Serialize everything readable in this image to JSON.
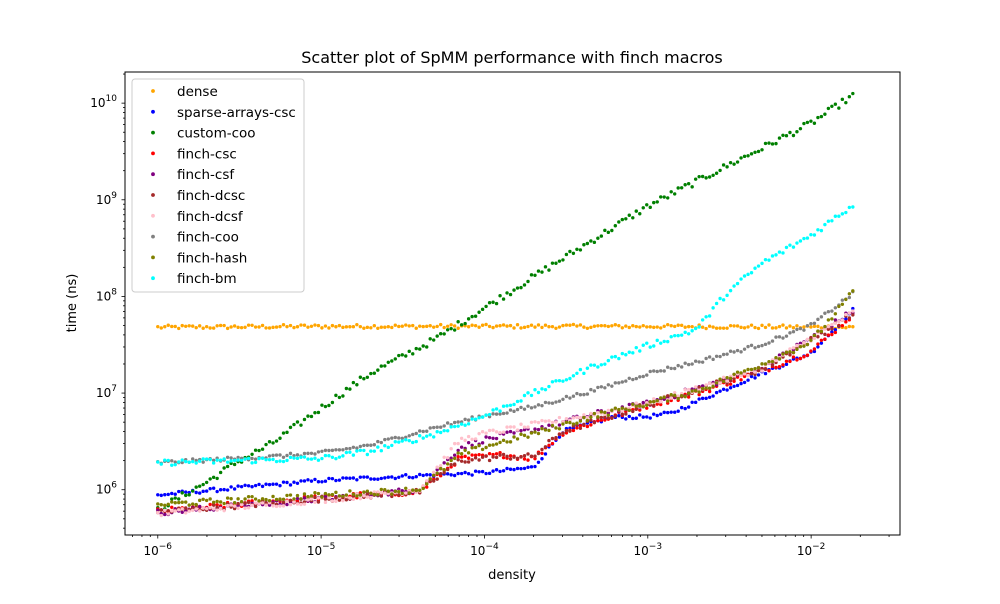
{
  "chart_data": {
    "type": "scatter",
    "title": "Scatter plot of SpMM performance with finch macros",
    "xlabel": "density",
    "ylabel": "time (ns)",
    "xscale": "log",
    "yscale": "log",
    "xlim": [
      6.3e-07,
      0.035
    ],
    "ylim": [
      340000,
      21000000000
    ],
    "x_ticks": [
      {
        "value": 1e-06,
        "base": "10",
        "exp": "−6"
      },
      {
        "value": 1e-05,
        "base": "10",
        "exp": "−5"
      },
      {
        "value": 0.0001,
        "base": "10",
        "exp": "−4"
      },
      {
        "value": 0.001,
        "base": "10",
        "exp": "−3"
      },
      {
        "value": 0.01,
        "base": "10",
        "exp": "−2"
      }
    ],
    "y_ticks": [
      {
        "value": 1000000.0,
        "base": "10",
        "exp": "6"
      },
      {
        "value": 10000000.0,
        "base": "10",
        "exp": "7"
      },
      {
        "value": 100000000.0,
        "base": "10",
        "exp": "8"
      },
      {
        "value": 1000000000.0,
        "base": "10",
        "exp": "9"
      },
      {
        "value": 10000000000.0,
        "base": "10",
        "exp": "10"
      }
    ],
    "grid": false,
    "legend_position": "upper-left",
    "x_range": {
      "start": 1e-06,
      "end": 0.018,
      "points_per_series": 200
    },
    "series": [
      {
        "name": "dense",
        "color": "#ffa500",
        "key": [
          [
            1e-06,
            48000000.0
          ],
          [
            1e-05,
            49000000.0
          ],
          [
            0.0001,
            49000000.0
          ],
          [
            0.001,
            49000000.0
          ],
          [
            0.018,
            48000000.0
          ]
        ],
        "noise": 0.02
      },
      {
        "name": "sparse-arrays-csc",
        "color": "#0000ff",
        "key": [
          [
            1e-06,
            880000.0
          ],
          [
            1e-05,
            1250000.0
          ],
          [
            4e-05,
            1400000.0
          ],
          [
            0.0001,
            1500000.0
          ],
          [
            0.0002,
            1700000.0
          ],
          [
            0.0003,
            4000000.0
          ],
          [
            0.0006,
            5600000.0
          ],
          [
            0.001,
            5700000.0
          ],
          [
            0.0014,
            6200000.0
          ],
          [
            0.002,
            8200000.0
          ],
          [
            0.005,
            16000000.0
          ],
          [
            0.01,
            26000000.0
          ],
          [
            0.018,
            72000000.0
          ]
        ],
        "noise": 0.02
      },
      {
        "name": "custom-coo",
        "color": "#008000",
        "key": [
          [
            1e-06,
            620000.0
          ],
          [
            2e-06,
            1200000.0
          ],
          [
            3e-06,
            1900000.0
          ],
          [
            5e-06,
            3000000.0
          ],
          [
            1e-05,
            7000000.0
          ],
          [
            2e-05,
            16000000.0
          ],
          [
            5e-05,
            36000000.0
          ],
          [
            0.0001,
            76000000.0
          ],
          [
            0.0002,
            160000000.0
          ],
          [
            0.001,
            860000000.0
          ],
          [
            0.01,
            6200000000.0
          ],
          [
            0.018,
            12000000000.0
          ]
        ],
        "noise": 0.035
      },
      {
        "name": "finch-csc",
        "color": "#ff0000",
        "key": [
          [
            1e-06,
            600000.0
          ],
          [
            1e-05,
            830000.0
          ],
          [
            4e-05,
            950000.0
          ],
          [
            7e-05,
            2100000.0
          ],
          [
            0.00013,
            2300000.0
          ],
          [
            0.0002,
            2100000.0
          ],
          [
            0.0003,
            3900000.0
          ],
          [
            0.001,
            7500000.0
          ],
          [
            0.002,
            10000000.0
          ],
          [
            0.005,
            17000000.0
          ],
          [
            0.01,
            27000000.0
          ],
          [
            0.018,
            65000000.0
          ]
        ],
        "noise": 0.03
      },
      {
        "name": "finch-csf",
        "color": "#800080",
        "key": [
          [
            1e-06,
            580000.0
          ],
          [
            1e-05,
            800000.0
          ],
          [
            4e-05,
            1000000.0
          ],
          [
            7e-05,
            2700000.0
          ],
          [
            0.0001,
            3300000.0
          ],
          [
            0.0002,
            4200000.0
          ],
          [
            0.0005,
            6200000.0
          ],
          [
            0.001,
            7800000.0
          ],
          [
            0.005,
            18000000.0
          ],
          [
            0.018,
            70000000.0
          ]
        ],
        "noise": 0.03
      },
      {
        "name": "finch-dcsc",
        "color": "#a52a2a",
        "key": [
          [
            1e-06,
            590000.0
          ],
          [
            1e-05,
            800000.0
          ],
          [
            4e-05,
            950000.0
          ],
          [
            7e-05,
            2000000.0
          ],
          [
            0.00013,
            2200000.0
          ],
          [
            0.0002,
            2200000.0
          ],
          [
            0.0003,
            4000000.0
          ],
          [
            0.001,
            7600000.0
          ],
          [
            0.005,
            17500000.0
          ],
          [
            0.018,
            65000000.0
          ]
        ],
        "noise": 0.03
      },
      {
        "name": "finch-dcsf",
        "color": "#ffc0cb",
        "key": [
          [
            1e-06,
            570000.0
          ],
          [
            1e-05,
            780000.0
          ],
          [
            4e-05,
            1000000.0
          ],
          [
            7e-05,
            3200000.0
          ],
          [
            0.0001,
            3800000.0
          ],
          [
            0.0002,
            4700000.0
          ],
          [
            0.0005,
            6200000.0
          ],
          [
            0.001,
            7800000.0
          ],
          [
            0.005,
            18000000.0
          ],
          [
            0.018,
            68000000.0
          ]
        ],
        "noise": 0.03
      },
      {
        "name": "finch-coo",
        "color": "#808080",
        "key": [
          [
            1e-06,
            1900000.0
          ],
          [
            5e-06,
            2200000.0
          ],
          [
            1e-05,
            2400000.0
          ],
          [
            2e-05,
            2900000.0
          ],
          [
            5e-05,
            4400000.0
          ],
          [
            0.0001,
            5800000.0
          ],
          [
            0.0002,
            7200000.0
          ],
          [
            0.0005,
            11000000.0
          ],
          [
            0.001,
            16000000.0
          ],
          [
            0.002,
            21000000.0
          ],
          [
            0.005,
            32000000.0
          ],
          [
            0.01,
            50000000.0
          ],
          [
            0.018,
            107000000.0
          ]
        ],
        "noise": 0.02
      },
      {
        "name": "finch-hash",
        "color": "#808000",
        "key": [
          [
            1e-06,
            700000.0
          ],
          [
            1e-05,
            880000.0
          ],
          [
            4e-05,
            1000000.0
          ],
          [
            7e-05,
            2300000.0
          ],
          [
            0.0001,
            2800000.0
          ],
          [
            0.0002,
            3800000.0
          ],
          [
            0.0005,
            6000000.0
          ],
          [
            0.001,
            7800000.0
          ],
          [
            0.002,
            10500000.0
          ],
          [
            0.005,
            20000000.0
          ],
          [
            0.01,
            34000000.0
          ],
          [
            0.018,
            110000000.0
          ]
        ],
        "noise": 0.03
      },
      {
        "name": "finch-bm",
        "color": "#00ffff",
        "key": [
          [
            1e-06,
            1900000.0
          ],
          [
            3e-06,
            2000000.0
          ],
          [
            1e-05,
            2100000.0
          ],
          [
            2e-05,
            2500000.0
          ],
          [
            5e-05,
            3800000.0
          ],
          [
            0.0001,
            5800000.0
          ],
          [
            0.0002,
            10000000.0
          ],
          [
            0.0005,
            20000000.0
          ],
          [
            0.001,
            31000000.0
          ],
          [
            0.002,
            46000000.0
          ],
          [
            0.003,
            105000000.0
          ],
          [
            0.005,
            220000000.0
          ],
          [
            0.01,
            430000000.0
          ],
          [
            0.018,
            880000000.0
          ]
        ],
        "noise": 0.03
      }
    ]
  }
}
